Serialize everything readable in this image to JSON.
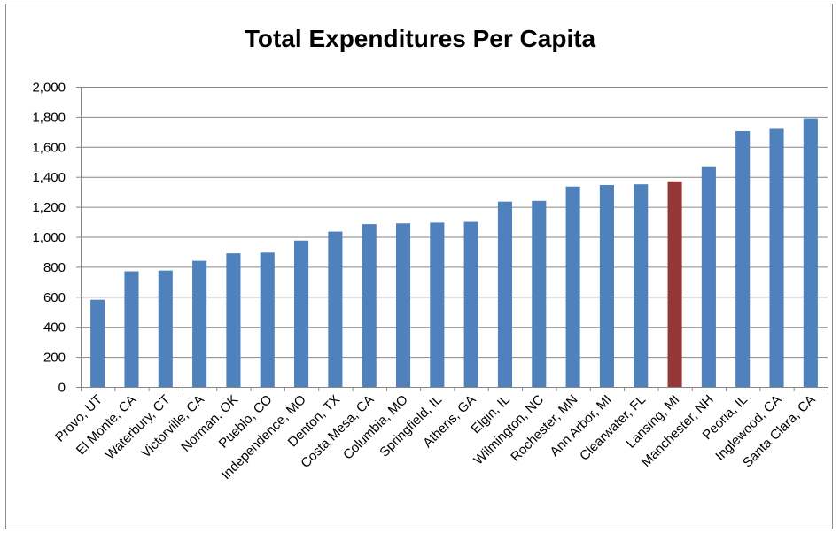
{
  "chart_data": {
    "type": "bar",
    "title": "Total Expenditures Per Capita",
    "xlabel": "",
    "ylabel": "",
    "ylim": [
      0,
      2000
    ],
    "yticks": [
      0,
      200,
      400,
      600,
      800,
      1000,
      1200,
      1400,
      1600,
      1800,
      2000
    ],
    "ytick_labels": [
      "0",
      "200",
      "400",
      "600",
      "800",
      "1,000",
      "1,200",
      "1,400",
      "1,600",
      "1,800",
      "2,000"
    ],
    "grid": true,
    "legend": "none",
    "categories": [
      "Provo, UT",
      "El Monte, CA",
      "Waterbury, CT",
      "Victorville, CA",
      "Norman, OK",
      "Pueblo, CO",
      "Independence, MO",
      "Denton, TX",
      "Costa Mesa, CA",
      "Columbia, MO",
      "Springfield, IL",
      "Athens, GA",
      "Elgin, IL",
      "Wilmington, NC",
      "Rochester, MN",
      "Ann Arbor, MI",
      "Clearwater, FL",
      "Lansing, MI",
      "Manchester, NH",
      "Peoria, IL",
      "Inglewood, CA",
      "Santa Clara, CA"
    ],
    "values": [
      580,
      770,
      775,
      840,
      890,
      895,
      975,
      1035,
      1085,
      1090,
      1095,
      1100,
      1235,
      1240,
      1335,
      1345,
      1350,
      1370,
      1465,
      1705,
      1720,
      1790
    ],
    "highlight_category": "Lansing, MI",
    "colors": {
      "bar": "#4f81bd",
      "highlight": "#953735",
      "grid": "#868686"
    }
  }
}
